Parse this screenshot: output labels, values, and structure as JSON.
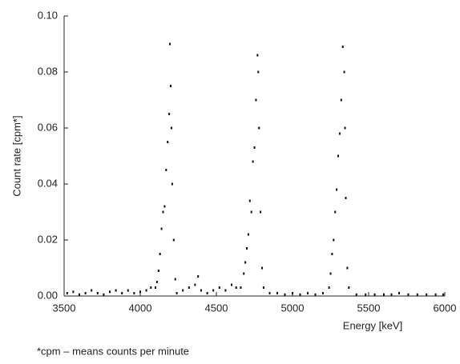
{
  "chart_data": {
    "type": "scatter",
    "xlabel": "Energy [keV]",
    "ylabel": "Count rate [cpm*]",
    "footnote": "*cpm – means counts per minute",
    "color": "#111111",
    "xlim": [
      3500,
      6000
    ],
    "xticks": [
      3500,
      4000,
      4500,
      5000,
      5500,
      6000
    ],
    "ylim": [
      0,
      0.1
    ],
    "yticks": [
      {
        "value": 0,
        "label": "0.00"
      },
      {
        "value": 0.02,
        "label": "0.02"
      },
      {
        "value": 0.04,
        "label": "0.04"
      },
      {
        "value": 0.06,
        "label": "0.06"
      },
      {
        "value": 0.08,
        "label": "0.08"
      },
      {
        "value": 0.1,
        "label": "0.10"
      }
    ],
    "x": [
      3520,
      3560,
      3600,
      3640,
      3680,
      3720,
      3760,
      3800,
      3840,
      3880,
      3920,
      3960,
      4000,
      4040,
      4070,
      4100,
      4110,
      4120,
      4130,
      4140,
      4150,
      4160,
      4170,
      4180,
      4190,
      4195,
      4200,
      4205,
      4210,
      4220,
      4230,
      4240,
      4280,
      4320,
      4360,
      4380,
      4400,
      4440,
      4480,
      4520,
      4560,
      4600,
      4630,
      4660,
      4680,
      4690,
      4700,
      4710,
      4720,
      4730,
      4740,
      4750,
      4760,
      4770,
      4775,
      4780,
      4790,
      4800,
      4810,
      4850,
      4900,
      4950,
      5000,
      5050,
      5100,
      5150,
      5200,
      5240,
      5250,
      5260,
      5270,
      5280,
      5290,
      5300,
      5310,
      5320,
      5330,
      5340,
      5345,
      5350,
      5360,
      5370,
      5420,
      5480,
      5540,
      5600,
      5650,
      5700,
      5760,
      5820,
      5880,
      5940,
      5990
    ],
    "values": [
      0.001,
      0.0015,
      0.0005,
      0.001,
      0.002,
      0.001,
      0.0005,
      0.0015,
      0.002,
      0.001,
      0.002,
      0.001,
      0.0015,
      0.002,
      0.003,
      0.003,
      0.005,
      0.009,
      0.015,
      0.024,
      0.03,
      0.032,
      0.045,
      0.055,
      0.065,
      0.09,
      0.075,
      0.06,
      0.04,
      0.02,
      0.006,
      0.001,
      0.002,
      0.003,
      0.004,
      0.007,
      0.002,
      0.001,
      0.002,
      0.003,
      0.002,
      0.004,
      0.003,
      0.003,
      0.008,
      0.012,
      0.017,
      0.022,
      0.034,
      0.03,
      0.048,
      0.053,
      0.07,
      0.086,
      0.08,
      0.06,
      0.03,
      0.01,
      0.003,
      0.001,
      0.001,
      0.0005,
      0.001,
      0.0005,
      0.001,
      0.0005,
      0.001,
      0.003,
      0.008,
      0.015,
      0.02,
      0.03,
      0.038,
      0.05,
      0.058,
      0.07,
      0.089,
      0.08,
      0.06,
      0.035,
      0.01,
      0.003,
      0.0005,
      0.0005,
      0.0005,
      0.0005,
      0.0005,
      0.001,
      0.0005,
      0.0005,
      0.0005,
      0.0005,
      0.0005
    ]
  }
}
